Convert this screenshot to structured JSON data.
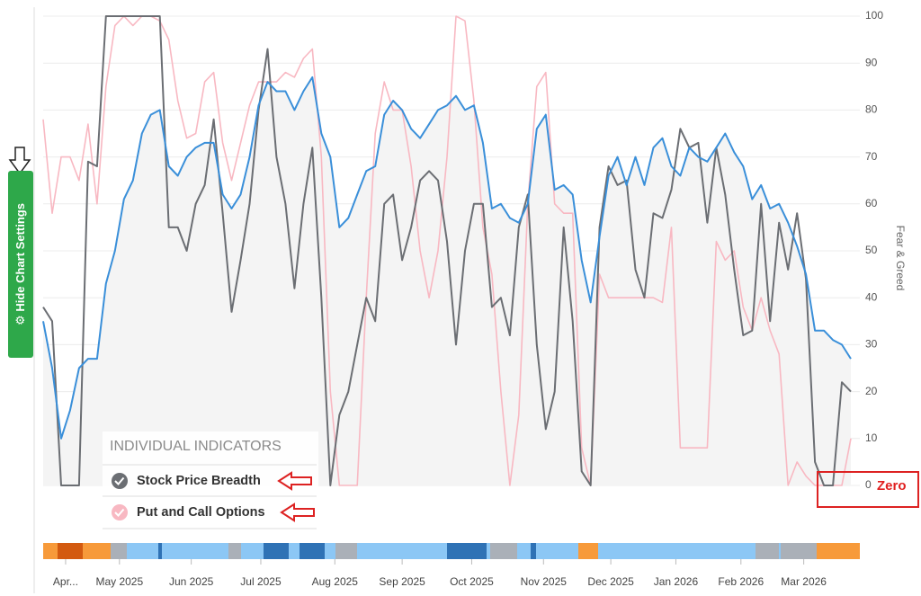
{
  "chart_data": {
    "type": "line",
    "y_label": "Fear & Greed",
    "legend_title": "INDIVIDUAL INDICATORS",
    "annotation": "Zero",
    "button": "Hide Chart Settings",
    "xlim": [
      0,
      364
    ],
    "ylim": [
      0,
      100
    ],
    "yticks": [
      0,
      10,
      20,
      30,
      40,
      50,
      60,
      70,
      80,
      90,
      100
    ],
    "xticks": [
      {
        "value": 10,
        "label": "Apr..."
      },
      {
        "value": 34,
        "label": "May 2025"
      },
      {
        "value": 66,
        "label": "Jun 2025"
      },
      {
        "value": 97,
        "label": "Jul 2025"
      },
      {
        "value": 130,
        "label": "Aug 2025"
      },
      {
        "value": 160,
        "label": "Sep 2025"
      },
      {
        "value": 191,
        "label": "Oct 2025"
      },
      {
        "value": 223,
        "label": "Nov 2025"
      },
      {
        "value": 253,
        "label": "Dec 2025"
      },
      {
        "value": 282,
        "label": "Jan 2026"
      },
      {
        "value": 311,
        "label": "Feb 2026"
      },
      {
        "value": 339,
        "label": "Mar 2026"
      }
    ],
    "grid": true,
    "x": [
      0,
      4,
      8,
      12,
      16,
      20,
      24,
      28,
      32,
      36,
      40,
      44,
      48,
      52,
      56,
      60,
      64,
      68,
      72,
      76,
      80,
      84,
      88,
      92,
      96,
      100,
      104,
      108,
      112,
      116,
      120,
      124,
      128,
      132,
      136,
      140,
      144,
      148,
      152,
      156,
      160,
      164,
      168,
      172,
      176,
      180,
      184,
      188,
      192,
      196,
      200,
      204,
      208,
      212,
      216,
      220,
      224,
      228,
      232,
      236,
      240,
      244,
      248,
      252,
      256,
      260,
      264,
      268,
      272,
      276,
      280,
      284,
      288,
      292,
      296,
      300,
      304,
      308,
      312,
      316,
      320,
      324,
      328,
      332,
      336,
      340,
      344,
      348,
      352,
      356,
      360
    ],
    "series": [
      {
        "color": "#3a8fd9",
        "values": [
          35,
          25,
          10,
          16,
          25,
          27,
          27,
          43,
          50,
          61,
          65,
          75,
          79,
          80,
          68,
          66,
          70,
          72,
          73,
          73,
          62,
          59,
          62,
          70,
          81,
          86,
          84,
          84,
          80,
          84,
          87,
          75,
          70,
          55,
          57,
          62,
          67,
          68,
          79,
          82,
          80,
          76,
          74,
          77,
          80,
          81,
          83,
          80,
          81,
          73,
          59,
          60,
          57,
          56,
          60,
          76,
          79,
          63,
          64,
          62,
          48,
          39,
          53,
          66,
          70,
          64,
          70,
          64,
          72,
          74,
          68,
          66,
          72,
          70,
          69,
          72,
          75,
          71,
          68,
          61,
          64,
          59,
          60,
          56,
          51,
          45,
          33,
          33,
          31,
          30,
          27
        ]
      },
      {
        "name": "Stock Price Breadth",
        "color": "#6b6e73",
        "values": [
          38,
          35,
          0,
          0,
          0,
          69,
          68,
          100,
          100,
          100,
          100,
          100,
          100,
          100,
          55,
          55,
          50,
          60,
          64,
          78,
          58,
          37,
          48,
          60,
          80,
          93,
          70,
          60,
          42,
          60,
          72,
          40,
          0,
          15,
          20,
          30,
          40,
          35,
          60,
          62,
          48,
          55,
          65,
          67,
          65,
          52,
          30,
          50,
          60,
          60,
          38,
          40,
          32,
          55,
          62,
          30,
          12,
          20,
          55,
          35,
          3,
          0,
          55,
          68,
          64,
          65,
          46,
          40,
          58,
          57,
          63,
          76,
          72,
          73,
          56,
          72,
          62,
          46,
          32,
          33,
          60,
          35,
          56,
          46,
          58,
          44,
          5,
          0,
          0,
          22,
          20
        ]
      },
      {
        "name": "Put and Call Options",
        "color": "#f8b8c2",
        "values": [
          78,
          58,
          70,
          70,
          65,
          77,
          60,
          85,
          98,
          100,
          98,
          100,
          100,
          99,
          95,
          82,
          74,
          75,
          86,
          88,
          73,
          65,
          73,
          81,
          86,
          86,
          86,
          88,
          87,
          91,
          93,
          70,
          20,
          0,
          0,
          0,
          40,
          75,
          86,
          80,
          80,
          68,
          50,
          40,
          50,
          70,
          100,
          99,
          82,
          55,
          45,
          20,
          0,
          15,
          60,
          85,
          88,
          60,
          58,
          58,
          8,
          0,
          45,
          40,
          40,
          40,
          40,
          40,
          40,
          39,
          55,
          8,
          8,
          8,
          8,
          52,
          48,
          50,
          38,
          33,
          40,
          33,
          28,
          0,
          5,
          2,
          0,
          0,
          0,
          0,
          10
        ]
      }
    ]
  }
}
